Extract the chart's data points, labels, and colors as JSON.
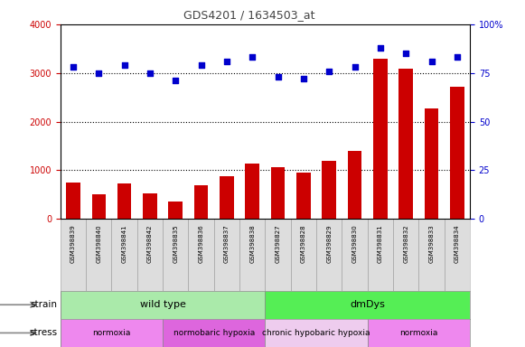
{
  "title": "GDS4201 / 1634503_at",
  "samples": [
    "GSM398839",
    "GSM398840",
    "GSM398841",
    "GSM398842",
    "GSM398835",
    "GSM398836",
    "GSM398837",
    "GSM398838",
    "GSM398827",
    "GSM398828",
    "GSM398829",
    "GSM398830",
    "GSM398831",
    "GSM398832",
    "GSM398833",
    "GSM398834"
  ],
  "counts": [
    740,
    500,
    730,
    520,
    360,
    700,
    870,
    1130,
    1060,
    960,
    1200,
    1400,
    3300,
    3080,
    2280,
    2720
  ],
  "percentile": [
    78,
    75,
    79,
    75,
    71,
    79,
    81,
    83,
    73,
    72,
    76,
    78,
    88,
    85,
    81,
    83
  ],
  "left_ylim": [
    0,
    4000
  ],
  "right_ylim": [
    0,
    100
  ],
  "left_yticks": [
    0,
    1000,
    2000,
    3000,
    4000
  ],
  "right_yticks": [
    0,
    25,
    50,
    75,
    100
  ],
  "right_yticklabels": [
    "0",
    "25",
    "50",
    "75",
    "100%"
  ],
  "strain_groups": [
    {
      "label": "wild type",
      "start": 0,
      "end": 8,
      "color": "#aaeaaa"
    },
    {
      "label": "dmDys",
      "start": 8,
      "end": 16,
      "color": "#55ee55"
    }
  ],
  "stress_groups": [
    {
      "label": "normoxia",
      "start": 0,
      "end": 4,
      "color": "#ee88ee"
    },
    {
      "label": "normobaric hypoxia",
      "start": 4,
      "end": 8,
      "color": "#dd66dd"
    },
    {
      "label": "chronic hypobaric hypoxia",
      "start": 8,
      "end": 12,
      "color": "#eeccee"
    },
    {
      "label": "normoxia",
      "start": 12,
      "end": 16,
      "color": "#ee88ee"
    }
  ],
  "bar_color": "#cc0000",
  "dot_color": "#0000cc",
  "grid_yticks": [
    1000,
    2000,
    3000
  ],
  "title_color": "#444444",
  "left_tick_color": "#cc0000",
  "right_tick_color": "#0000cc",
  "label_box_color": "#dddddd",
  "label_box_edge": "#999999"
}
